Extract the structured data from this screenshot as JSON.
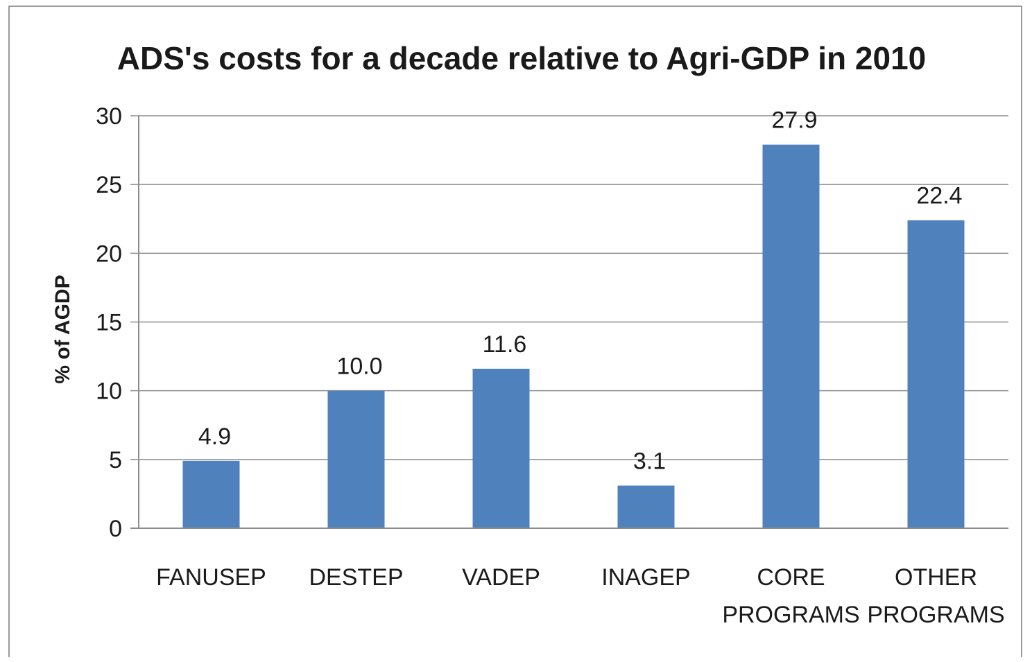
{
  "chart_data": {
    "type": "bar",
    "title": "ADS's costs  for a decade relative to Agri-GDP in 2010",
    "xlabel": "",
    "ylabel": "% of AGDP",
    "categories": [
      [
        "FANUSEP"
      ],
      [
        "DESTEP"
      ],
      [
        "VADEP"
      ],
      [
        "INAGEP"
      ],
      [
        "CORE",
        "PROGRAMS"
      ],
      [
        "OTHER",
        "PROGRAMS"
      ]
    ],
    "values": [
      4.9,
      10.0,
      11.6,
      3.1,
      27.9,
      22.4
    ],
    "data_labels": [
      "4.9",
      "10.0",
      "11.6",
      "3.1",
      "27.9",
      "22.4"
    ],
    "ylim": [
      0,
      30
    ],
    "yticks": [
      0,
      5,
      10,
      15,
      20,
      25,
      30
    ],
    "grid": true,
    "legend": "none",
    "bar_color": "#4f81bd"
  }
}
